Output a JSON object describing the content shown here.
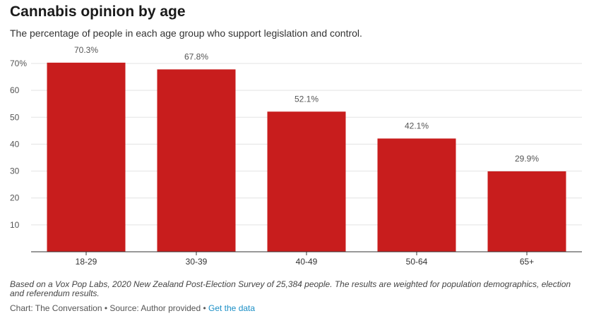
{
  "chart_data": {
    "type": "bar",
    "title": "Cannabis opinion by age",
    "subtitle": "The percentage of people in each age group who support legislation and control.",
    "categories": [
      "18-29",
      "30-39",
      "40-49",
      "50-64",
      "65+"
    ],
    "values": [
      70.3,
      67.8,
      52.1,
      42.1,
      29.9
    ],
    "data_labels": [
      "70.3%",
      "67.8%",
      "52.1%",
      "42.1%",
      "29.9%"
    ],
    "y_ticks": [
      10,
      20,
      30,
      40,
      50,
      60,
      70
    ],
    "y_tick_labels": [
      "10",
      "20",
      "30",
      "40",
      "50",
      "60",
      "70%"
    ],
    "ylim": [
      0,
      70
    ],
    "xlabel": "",
    "ylabel": "",
    "bar_color": "#c81d1d",
    "grid": true
  },
  "footer": {
    "note": "Based on a Vox Pop Labs, 2020 New Zealand Post-Election Survey of 25,384 people. The results are weighted for population demographics, election and referendum results.",
    "credit_prefix": "Chart: The Conversation • Source: Author provided • ",
    "link_label": "Get the data"
  }
}
